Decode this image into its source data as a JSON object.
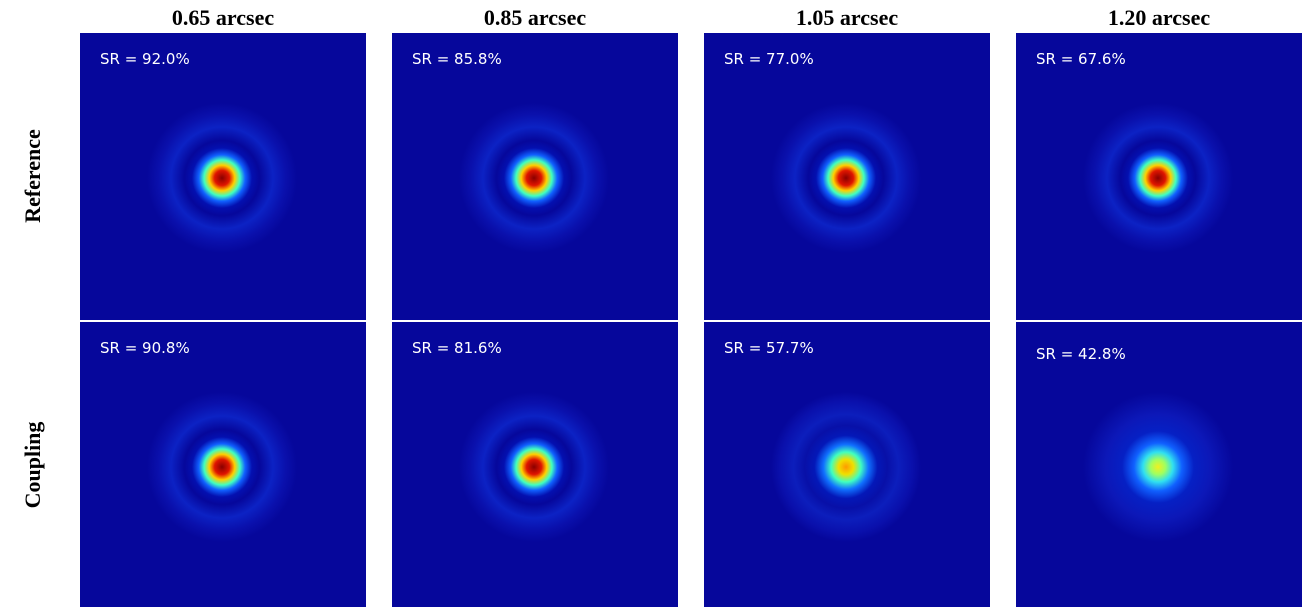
{
  "columns": [
    "0.65 arcsec",
    "0.85 arcsec",
    "1.05 arcsec",
    "1.20 arcsec"
  ],
  "rows": [
    {
      "label": "Reference",
      "panels": [
        "SR = 92.0%",
        "SR = 85.8%",
        "SR = 77.0%",
        "SR = 67.6%"
      ]
    },
    {
      "label": "Coupling",
      "panels": [
        "SR = 90.8%",
        "SR = 81.6%",
        "SR = 57.7%",
        "SR = 42.8%"
      ]
    }
  ]
}
